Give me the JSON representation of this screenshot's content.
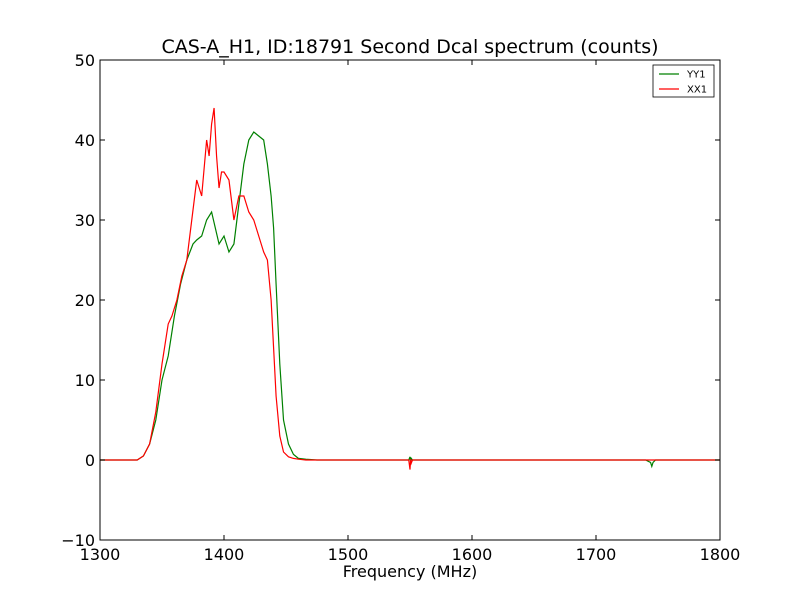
{
  "chart_data": {
    "type": "line",
    "title": "CAS-A_H1, ID:18791 Second Dcal spectrum (counts)",
    "xlabel": "Frequency (MHz)",
    "ylabel": "",
    "xlim": [
      1300,
      1800
    ],
    "ylim": [
      -10,
      50
    ],
    "xticks": [
      1300,
      1400,
      1500,
      1600,
      1700,
      1800
    ],
    "xtick_labels": [
      "1300",
      "1400",
      "1500",
      "1600",
      "1700",
      "1800"
    ],
    "yticks": [
      -10,
      0,
      10,
      20,
      30,
      40,
      50
    ],
    "ytick_labels": [
      "−10",
      "0",
      "10",
      "20",
      "30",
      "40",
      "50"
    ],
    "grid": false,
    "legend_position": "top-right",
    "series": [
      {
        "name": "YY1",
        "color": "#008000",
        "x": [
          1300,
          1330,
          1335,
          1340,
          1345,
          1350,
          1355,
          1360,
          1365,
          1370,
          1375,
          1378,
          1382,
          1386,
          1390,
          1393,
          1396,
          1400,
          1404,
          1408,
          1412,
          1416,
          1420,
          1424,
          1428,
          1432,
          1435,
          1438,
          1440,
          1442,
          1445,
          1448,
          1452,
          1456,
          1460,
          1466,
          1475,
          1485,
          1500,
          1549,
          1550,
          1550.5,
          1551,
          1552,
          1600,
          1700,
          1740,
          1744,
          1745,
          1746,
          1748,
          1800
        ],
        "y": [
          0,
          0,
          0.5,
          2,
          5,
          10,
          13,
          18,
          22,
          25,
          27,
          27.5,
          28,
          30,
          31,
          29,
          27,
          28,
          26,
          27,
          32,
          37,
          40,
          41,
          40.5,
          40,
          37,
          33,
          29,
          22,
          12,
          5,
          2,
          0.7,
          0.2,
          0.1,
          0,
          0,
          0,
          0,
          0.4,
          -0.3,
          0.2,
          0,
          0,
          0,
          0,
          -0.3,
          -0.8,
          -0.3,
          0,
          0
        ]
      },
      {
        "name": "XX1",
        "color": "#ff0000",
        "x": [
          1300,
          1330,
          1335,
          1340,
          1345,
          1350,
          1355,
          1358,
          1362,
          1366,
          1370,
          1374,
          1378,
          1382,
          1386,
          1388,
          1390,
          1392,
          1394,
          1396,
          1398,
          1400,
          1404,
          1408,
          1412,
          1416,
          1420,
          1424,
          1428,
          1432,
          1435,
          1438,
          1440,
          1442,
          1445,
          1448,
          1452,
          1456,
          1460,
          1466,
          1475,
          1485,
          1500,
          1549,
          1550,
          1550.5,
          1551,
          1552,
          1600,
          1700,
          1745,
          1800
        ],
        "y": [
          0,
          0,
          0.5,
          2,
          6,
          12,
          17,
          18,
          20,
          23,
          25,
          30,
          35,
          33,
          40,
          38,
          42,
          44,
          38,
          34,
          36,
          36,
          35,
          30,
          33,
          33,
          31,
          30,
          28,
          26,
          25,
          20,
          14,
          8,
          3,
          1,
          0.4,
          0.2,
          0.1,
          0,
          0,
          0,
          0,
          0,
          -1.2,
          0.1,
          -0.4,
          0,
          0,
          0,
          0,
          0
        ]
      }
    ]
  }
}
